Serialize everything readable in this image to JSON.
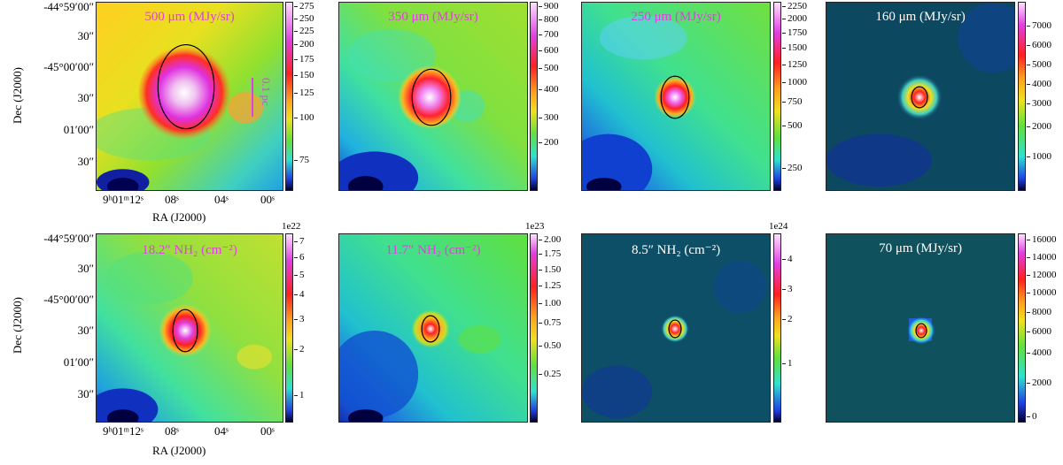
{
  "panels": [
    {
      "title": "500 μm (MJy/sr)",
      "ticks": [
        "275",
        "250",
        "225",
        "200",
        "175",
        "150",
        "125",
        "100",
        "75"
      ]
    },
    {
      "title": "350 μm (MJy/sr)",
      "ticks": [
        "900",
        "800",
        "700",
        "600",
        "500",
        "400",
        "300",
        "200"
      ]
    },
    {
      "title": "250 μm (MJy/sr)",
      "ticks": [
        "2250",
        "2000",
        "1750",
        "1500",
        "1250",
        "1000",
        "750",
        "500",
        "250"
      ]
    },
    {
      "title": "160 μm (MJy/sr)",
      "ticks": [
        "7000",
        "6000",
        "5000",
        "4000",
        "3000",
        "2000",
        "1000"
      ]
    },
    {
      "title": "18.2″ NH₂ (cm⁻²)",
      "multiplier": "1e22",
      "ticks": [
        "7",
        "6",
        "5",
        "4",
        "3",
        "2",
        "1"
      ]
    },
    {
      "title": "11.7″ NH₂ (cm⁻²)",
      "multiplier": "1e23",
      "ticks": [
        "2.00",
        "1.75",
        "1.50",
        "1.25",
        "1.00",
        "0.75",
        "0.50",
        "0.25"
      ]
    },
    {
      "title": "8.5″ NH₂ (cm⁻²)",
      "multiplier": "1e24",
      "ticks": [
        "4",
        "3",
        "2",
        "1"
      ]
    },
    {
      "title": "70 μm (MJy/sr)",
      "ticks": [
        "16000",
        "14000",
        "12000",
        "10000",
        "8000",
        "6000",
        "4000",
        "2000",
        "0"
      ]
    }
  ],
  "axes": {
    "dec_title": "Dec (J2000)",
    "ra_title": "RA (J2000)",
    "dec_ticks": [
      "-44°59′00″",
      "30″",
      "-45°00′00″",
      "30″",
      "01′00″",
      "30″"
    ],
    "ra_ticks": [
      "9ʰ01ᵐ12ˢ",
      "08ˢ",
      "04ˢ",
      "00ˢ"
    ]
  },
  "scale_bar": "0.1 pc",
  "colors": {
    "title_magenta": "#e040e0",
    "title_white": "#ffffff"
  }
}
